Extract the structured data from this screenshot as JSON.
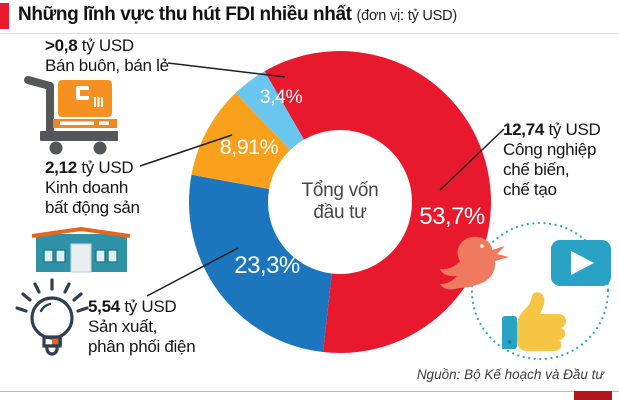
{
  "header": {
    "title": "Những lĩnh vực thu hút FDI nhiều nhất",
    "unit": "(đơn vị: tỷ USD)"
  },
  "chart_data": {
    "type": "pie",
    "style": "donut",
    "title": "Những lĩnh vực thu hút FDI nhiều nhất (đơn vị: tỷ USD)",
    "center_label": "Tổng vốn đầu tư",
    "start_angle_cw_from_top_deg": -30,
    "slices_sum_percent": 89.31,
    "layout": "slice angles normalized to fill 360 degrees; labels drawn in white inside slices",
    "slices": [
      {
        "label": "Công nghiệp chế biến, chế tạo",
        "value_billion_usd": "12,74",
        "percent": 53.7,
        "percent_label": "53,7%",
        "color": "#e8192c"
      },
      {
        "label": "Sản xuất, phân phối điện",
        "value_billion_usd": "5,54",
        "percent": 23.3,
        "percent_label": "23,3%",
        "color": "#1b76bd"
      },
      {
        "label": "Kinh doanh bất động sản",
        "value_billion_usd": "2,12",
        "percent": 8.91,
        "percent_label": "8,91%",
        "color": "#f9a11d"
      },
      {
        "label": "Bán buôn, bán lẻ",
        "value_billion_usd": ">0,8",
        "percent": 3.4,
        "percent_label": "3,4%",
        "color": "#68c6ef"
      }
    ]
  },
  "center": {
    "line1": "Tổng vốn",
    "line2": "đầu tư"
  },
  "callouts": {
    "retail": {
      "value": ">0,8",
      "suffix": " tỷ USD",
      "desc1": "Bán buôn, bán lẻ"
    },
    "realestate": {
      "value": "2,12",
      "suffix": " tỷ USD",
      "desc1": "Kinh doanh",
      "desc2": "bất động sản"
    },
    "power": {
      "value": "5,54",
      "suffix": " tỷ USD",
      "desc1": "Sản xuất,",
      "desc2": "phân phối điện"
    },
    "manufacturing": {
      "value": "12,74",
      "suffix": " tỷ USD",
      "desc1": "Công nghiệp",
      "desc2": "chế biến,",
      "desc3": "chế tạo"
    }
  },
  "footer": {
    "source": "Nguồn: Bộ Kế hoạch và Đầu tư"
  },
  "icons": {
    "handcart": "hand truck with cargo box (retail/wholesale)",
    "warehouse": "factory building (real estate)",
    "lightbulb": "light bulb (electricity production)",
    "bird": "bird social icon",
    "play": "video play button",
    "thumbs_up": "like thumbs-up",
    "accent_color": "#e8192c",
    "teal_color": "#29a3c5",
    "coral_color": "#ef7a5f",
    "yellow_color": "#f6c544"
  }
}
